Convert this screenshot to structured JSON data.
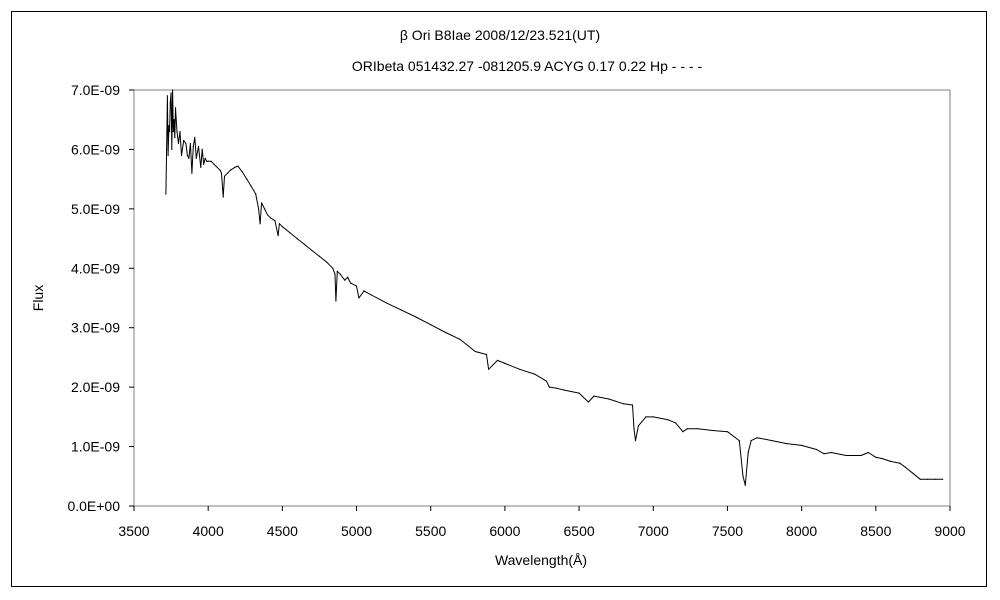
{
  "chart_data": {
    "type": "line",
    "title": "β Ori   B8Iae    2008/12/23.521(UT)",
    "subtitle": "ORIbeta 051432.27 -081205.9 ACYG 0.17 0.22 Hp - - - -",
    "xlabel": "Wavelength(Å)",
    "ylabel": "Flux",
    "xlim": [
      3500,
      9000
    ],
    "ylim": [
      0,
      7e-09
    ],
    "x_ticks": [
      3500,
      4000,
      4500,
      5000,
      5500,
      6000,
      6500,
      7000,
      7500,
      8000,
      8500,
      9000
    ],
    "x_tick_labels": [
      "3500",
      "4000",
      "4500",
      "5000",
      "5500",
      "6000",
      "6500",
      "7000",
      "7500",
      "8000",
      "8500",
      "9000"
    ],
    "y_ticks": [
      0,
      1e-09,
      2e-09,
      3e-09,
      4e-09,
      5e-09,
      6e-09,
      7e-09
    ],
    "y_tick_labels": [
      "0.0E+00",
      "1.0E-09",
      "2.0E-09",
      "3.0E-09",
      "4.0E-09",
      "5.0E-09",
      "6.0E-09",
      "7.0E-09"
    ],
    "grid": false,
    "legend": "none",
    "line_color": "#000000",
    "series": [
      {
        "x": [
          3715,
          3720,
          3725,
          3730,
          3735,
          3740,
          3745,
          3750,
          3755,
          3760,
          3765,
          3770,
          3775,
          3780,
          3790,
          3800,
          3810,
          3820,
          3835,
          3850,
          3860,
          3870,
          3880,
          3890,
          3900,
          3910,
          3920,
          3935,
          3950,
          3960,
          3970,
          3980,
          3990,
          4000,
          4020,
          4040,
          4060,
          4080,
          4090,
          4101,
          4110,
          4130,
          4150,
          4180,
          4200,
          4230,
          4260,
          4290,
          4320,
          4340,
          4350,
          4360,
          4380,
          4400,
          4420,
          4450,
          4471,
          4480,
          4500,
          4550,
          4600,
          4650,
          4700,
          4750,
          4800,
          4840,
          4855,
          4861,
          4870,
          4890,
          4921,
          4940,
          4960,
          5000,
          5016,
          5050,
          5100,
          5200,
          5300,
          5400,
          5500,
          5600,
          5700,
          5800,
          5876,
          5890,
          5950,
          6000,
          6100,
          6200,
          6280,
          6300,
          6350,
          6400,
          6500,
          6563,
          6600,
          6700,
          6800,
          6860,
          6870,
          6880,
          6900,
          6950,
          7000,
          7100,
          7150,
          7200,
          7230,
          7300,
          7400,
          7500,
          7580,
          7605,
          7620,
          7640,
          7660,
          7700,
          7800,
          7900,
          8000,
          8100,
          8150,
          8200,
          8300,
          8400,
          8450,
          8500,
          8542,
          8600,
          8662,
          8700,
          8750,
          8800,
          8850,
          8900,
          8950
        ],
        "y": [
          5.25e-09,
          6e-09,
          6.9e-09,
          5.9e-09,
          6.4e-09,
          6.3e-09,
          6.8e-09,
          6.95e-09,
          6e-09,
          7e-09,
          6.3e-09,
          6.5e-09,
          6.2e-09,
          6.7e-09,
          6.3e-09,
          6.1e-09,
          6.3e-09,
          5.9e-09,
          6.15e-09,
          6.1e-09,
          5.9e-09,
          5.85e-09,
          6.1e-09,
          5.6e-09,
          6.05e-09,
          6.2e-09,
          5.85e-09,
          6.05e-09,
          5.7e-09,
          6e-09,
          5.75e-09,
          5.85e-09,
          5.8e-09,
          5.8e-09,
          5.8e-09,
          5.75e-09,
          5.7e-09,
          5.65e-09,
          5.6e-09,
          5.2e-09,
          5.55e-09,
          5.6e-09,
          5.65e-09,
          5.7e-09,
          5.72e-09,
          5.62e-09,
          5.5e-09,
          5.38e-09,
          5.25e-09,
          5e-09,
          4.75e-09,
          5.1e-09,
          5e-09,
          4.9e-09,
          4.85e-09,
          4.8e-09,
          4.55e-09,
          4.75e-09,
          4.7e-09,
          4.6e-09,
          4.5e-09,
          4.4e-09,
          4.3e-09,
          4.2e-09,
          4.1e-09,
          4e-09,
          3.9e-09,
          3.45e-09,
          3.95e-09,
          3.9e-09,
          3.8e-09,
          3.85e-09,
          3.75e-09,
          3.7e-09,
          3.5e-09,
          3.62e-09,
          3.55e-09,
          3.42e-09,
          3.3e-09,
          3.18e-09,
          3.05e-09,
          2.92e-09,
          2.8e-09,
          2.6e-09,
          2.55e-09,
          2.3e-09,
          2.45e-09,
          2.4e-09,
          2.3e-09,
          2.22e-09,
          2.1e-09,
          2e-09,
          1.98e-09,
          1.95e-09,
          1.9e-09,
          1.75e-09,
          1.85e-09,
          1.8e-09,
          1.72e-09,
          1.7e-09,
          1.3e-09,
          1.1e-09,
          1.35e-09,
          1.5e-09,
          1.5e-09,
          1.45e-09,
          1.4e-09,
          1.25e-09,
          1.3e-09,
          1.3e-09,
          1.27e-09,
          1.25e-09,
          1.1e-09,
          5e-10,
          3.5e-10,
          9e-10,
          1.1e-09,
          1.15e-09,
          1.1e-09,
          1.05e-09,
          1.02e-09,
          9.5e-10,
          8.8e-10,
          9e-10,
          8.5e-10,
          8.5e-10,
          9e-10,
          8.2e-10,
          8e-10,
          7.5e-10,
          7.2e-10,
          6.5e-10,
          5.5e-10,
          4.5e-10,
          4.5e-10,
          4.5e-10,
          4.5e-10
        ]
      }
    ]
  }
}
